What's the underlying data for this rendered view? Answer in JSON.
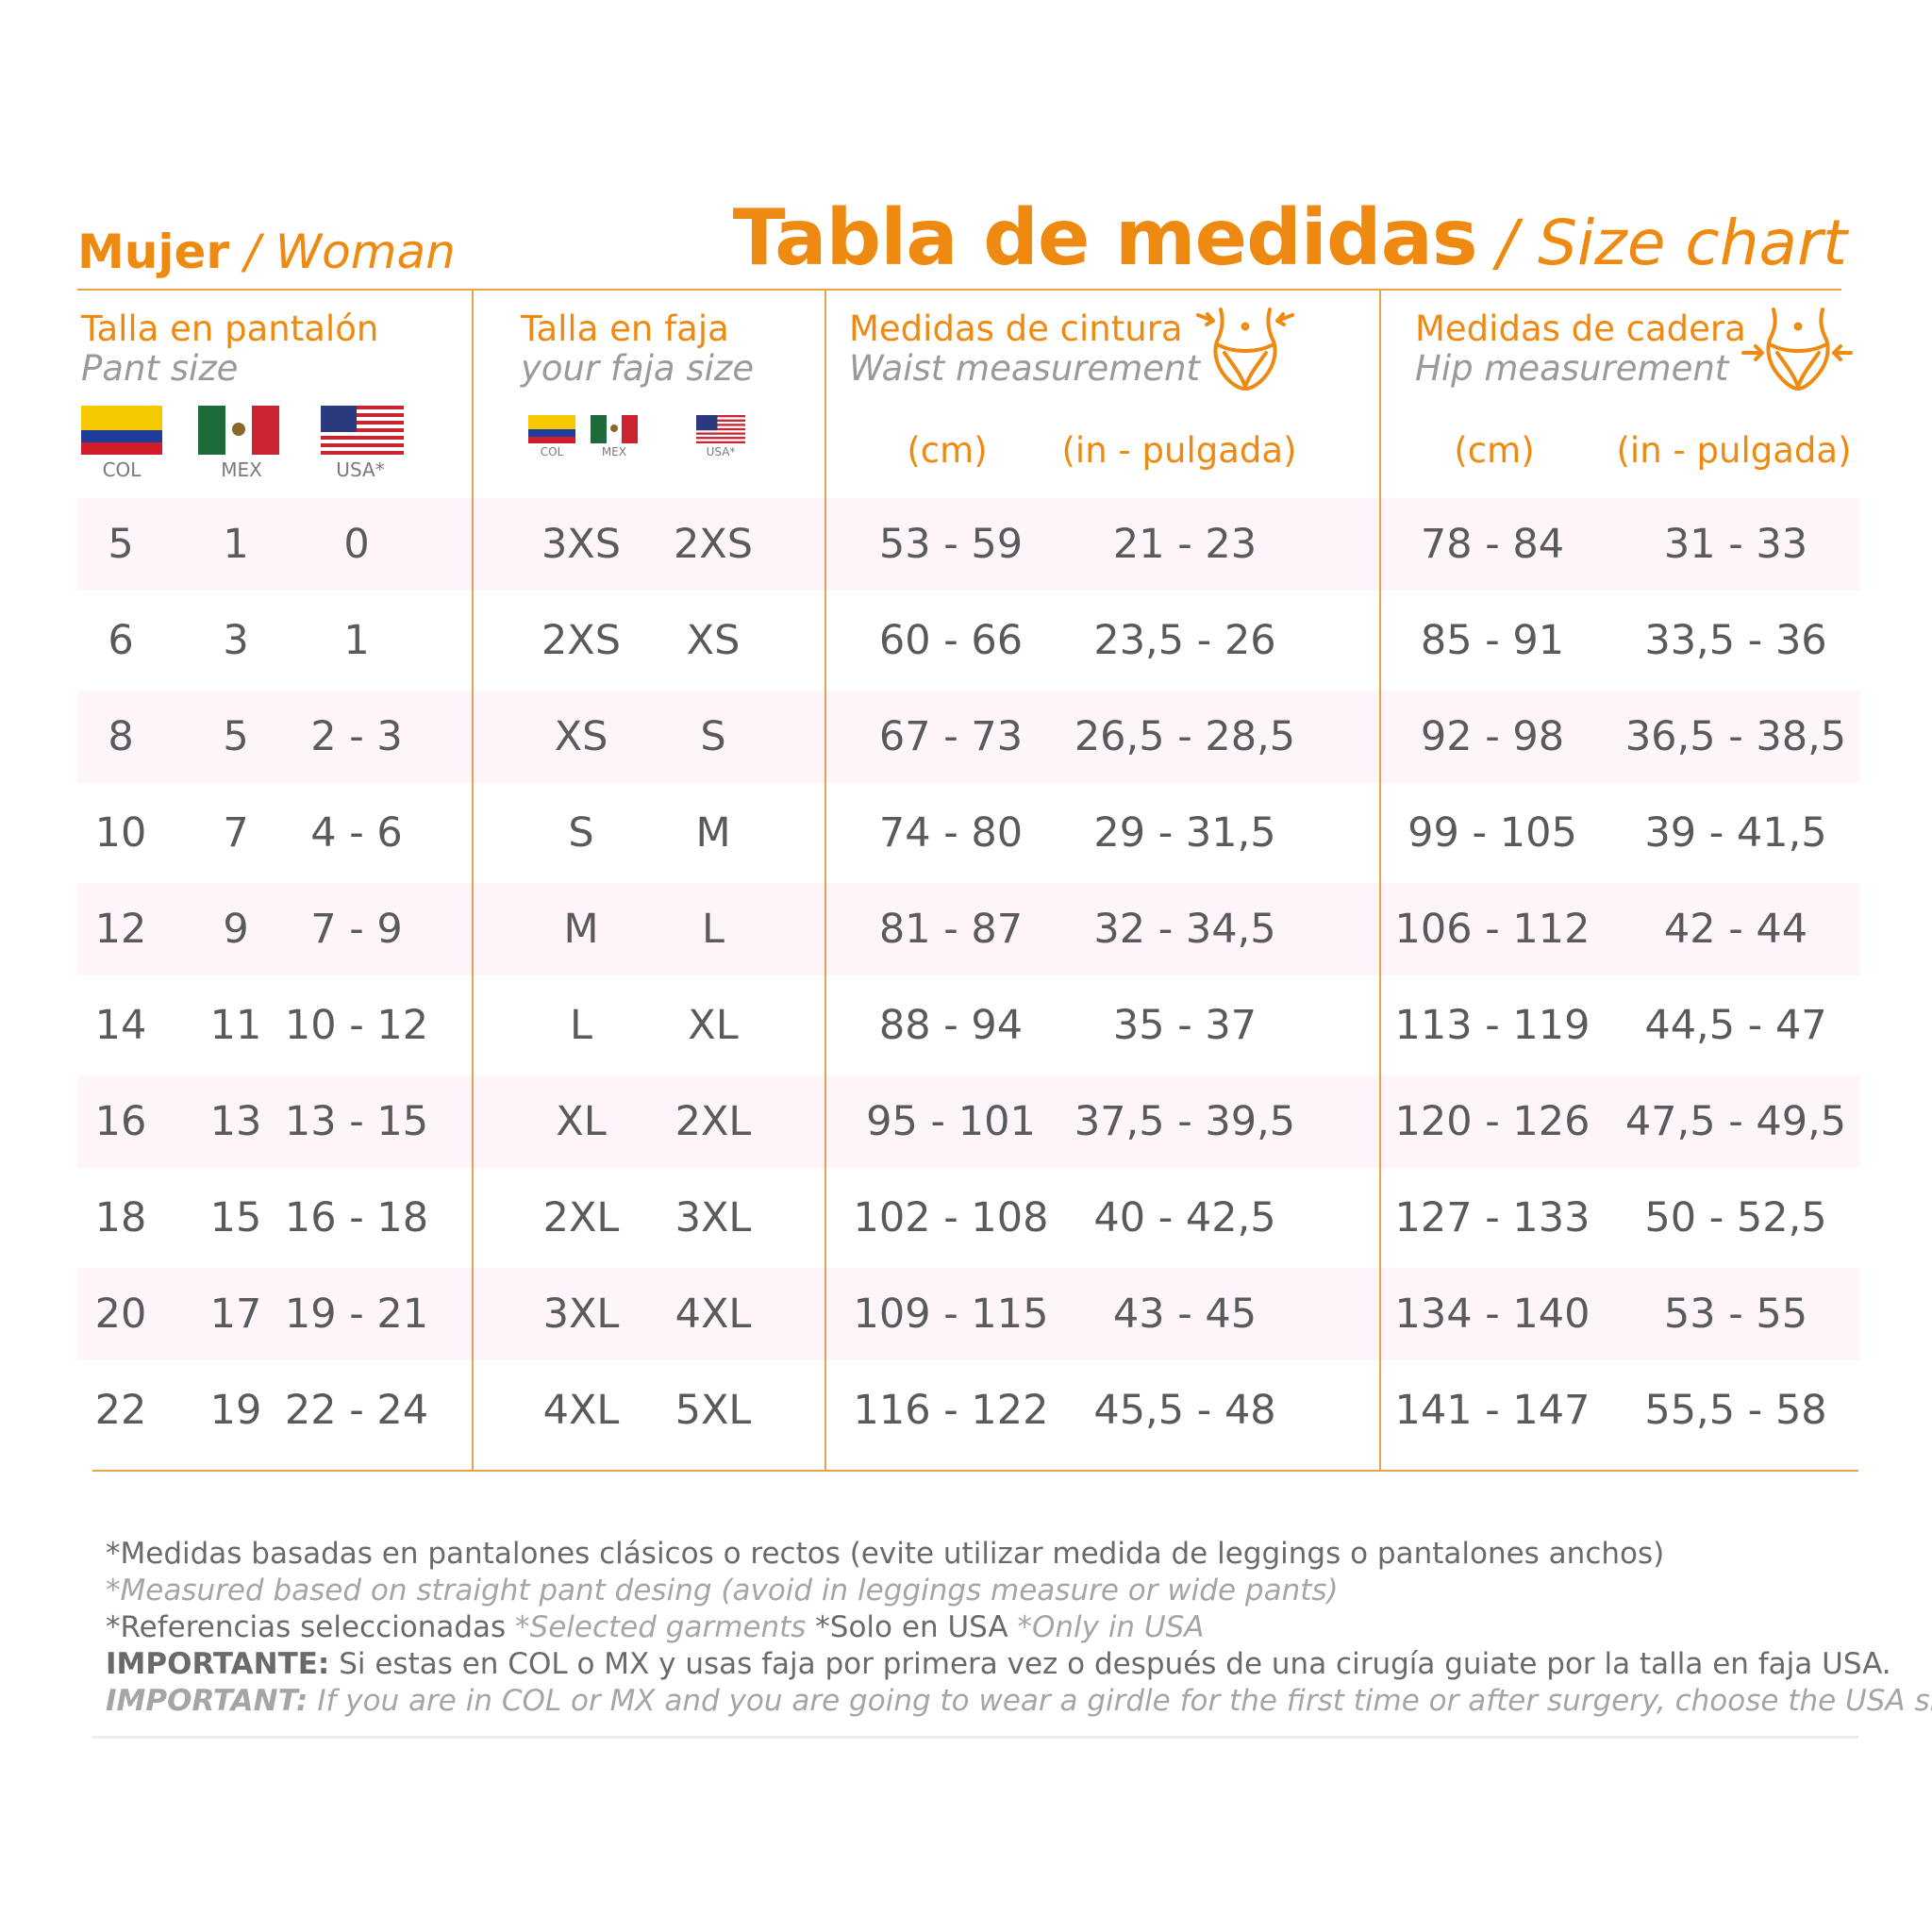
{
  "header": {
    "left_bold": "Mujer",
    "left_sep": " / ",
    "left_italic": "Woman",
    "right_bold": "Tabla de medidas",
    "right_sep": " / ",
    "right_italic": "Size chart"
  },
  "columns": {
    "pant": {
      "es": "Talla en pantalón",
      "en": "Pant size"
    },
    "faja": {
      "es": "Talla en faja",
      "en": "your faja size"
    },
    "waist": {
      "es": "Medidas de cintura",
      "en": "Waist measurement",
      "unit_cm": "(cm)",
      "unit_in": "(in - pulgada)",
      "icon": "waist-icon"
    },
    "hip": {
      "es": "Medidas de cadera",
      "en": "Hip measurement",
      "unit_cm": "(cm)",
      "unit_in": "(in - pulgada)",
      "icon": "hip-icon"
    }
  },
  "flags": {
    "col": "COL",
    "mex": "MEX",
    "usa": "USA*",
    "usa_small": "USA*"
  },
  "colors": {
    "accent": "#ee8a12",
    "band": "#fdf5f9",
    "text": "#5a5a5a"
  },
  "rows": [
    [
      "5",
      "1",
      "0",
      "3XS",
      "2XS",
      "53 - 59",
      "21 - 23",
      "78 - 84",
      "31 - 33"
    ],
    [
      "6",
      "3",
      "1",
      "2XS",
      "XS",
      "60 - 66",
      "23,5 - 26",
      "85 - 91",
      "33,5 - 36"
    ],
    [
      "8",
      "5",
      "2 - 3",
      "XS",
      "S",
      "67 - 73",
      "26,5 - 28,5",
      "92 - 98",
      "36,5 - 38,5"
    ],
    [
      "10",
      "7",
      "4 - 6",
      "S",
      "M",
      "74 - 80",
      "29 - 31,5",
      "99 - 105",
      "39 - 41,5"
    ],
    [
      "12",
      "9",
      "7 - 9",
      "M",
      "L",
      "81 - 87",
      "32 - 34,5",
      "106 - 112",
      "42 - 44"
    ],
    [
      "14",
      "11",
      "10 - 12",
      "L",
      "XL",
      "88 - 94",
      "35 - 37",
      "113 - 119",
      "44,5 - 47"
    ],
    [
      "16",
      "13",
      "13 - 15",
      "XL",
      "2XL",
      "95 - 101",
      "37,5 - 39,5",
      "120 - 126",
      "47,5 - 49,5"
    ],
    [
      "18",
      "15",
      "16 - 18",
      "2XL",
      "3XL",
      "102 - 108",
      "40 - 42,5",
      "127 - 133",
      "50 - 52,5"
    ],
    [
      "20",
      "17",
      "19 - 21",
      "3XL",
      "4XL",
      "109 - 115",
      "43 - 45",
      "134 - 140",
      "53 - 55"
    ],
    [
      "22",
      "19",
      "22 - 24",
      "4XL",
      "5XL",
      "116 - 122",
      "45,5 - 48",
      "141 - 147",
      "55,5 - 58"
    ]
  ],
  "notes": {
    "line1": "*Medidas basadas en pantalones clásicos o rectos (evite utilizar medida de leggings o pantalones anchos)",
    "line2": "*Measured based on straight pant desing (avoid in leggings measure or wide pants)",
    "line3_a": "*Referencias seleccionadas ",
    "line3_b": "*Selected garments",
    "line3_c": " *Solo en USA ",
    "line3_d": "*Only in USA",
    "line4_b": "IMPORTANTE:",
    "line4": " Si estas en COL o MX y usas faja por primera vez o después de una cirugía guiate por la talla en faja USA.",
    "line5_b": "IMPORTANT:",
    "line5": " If you are in COL or MX and you are going to wear a girdle for the first time or after surgery, choose the USA size."
  }
}
